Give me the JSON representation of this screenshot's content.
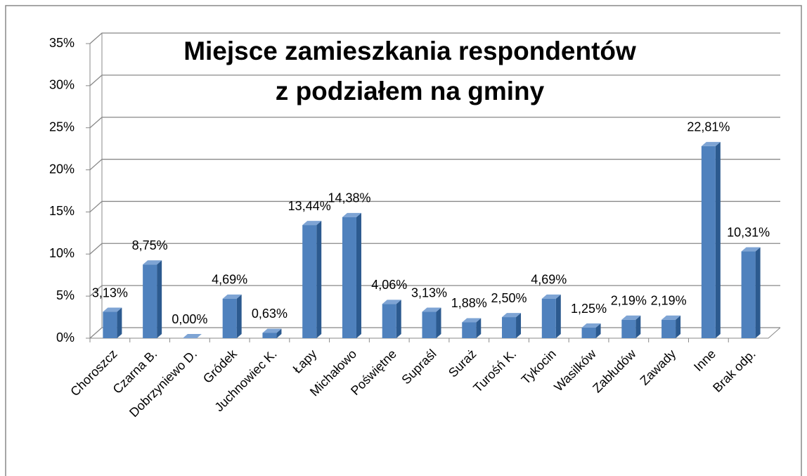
{
  "chart_data": {
    "type": "bar",
    "title": [
      "Miejsce zamieszkania respondentów",
      "z podziałem na gminy"
    ],
    "categories": [
      "Choroszcz",
      "Czarna B.",
      "Dobrzyniewo D.",
      "Gródek",
      "Juchnowiec K.",
      "Łapy",
      "Michałowo",
      "Poświętne",
      "Supraśl",
      "Suraż",
      "Turośń K.",
      "Tykocin",
      "Wasilków",
      "Zabłudów",
      "Zawady",
      "Inne",
      "Brak odp."
    ],
    "values": [
      3.13,
      8.75,
      0.0,
      4.69,
      0.63,
      13.44,
      14.38,
      4.06,
      3.13,
      1.88,
      2.5,
      4.69,
      1.25,
      2.19,
      2.19,
      22.81,
      10.31
    ],
    "value_labels": [
      "3,13%",
      "8,75%",
      "0,00%",
      "4,69%",
      "0,63%",
      "13,44%",
      "14,38%",
      "4,06%",
      "3,13%",
      "1,88%",
      "2,50%",
      "4,69%",
      "1,25%",
      "2,19%",
      "2,19%",
      "22,81%",
      "10,31%"
    ],
    "color": "#4f81bd",
    "ylim": [
      0,
      35
    ],
    "yticks": [
      {
        "value": 0,
        "label": "0%"
      },
      {
        "value": 5,
        "label": "5%"
      },
      {
        "value": 10,
        "label": "10%"
      },
      {
        "value": 15,
        "label": "15%"
      },
      {
        "value": 20,
        "label": "20%"
      },
      {
        "value": 25,
        "label": "25%"
      },
      {
        "value": 30,
        "label": "30%"
      },
      {
        "value": 35,
        "label": "35%"
      }
    ],
    "grid": true
  }
}
